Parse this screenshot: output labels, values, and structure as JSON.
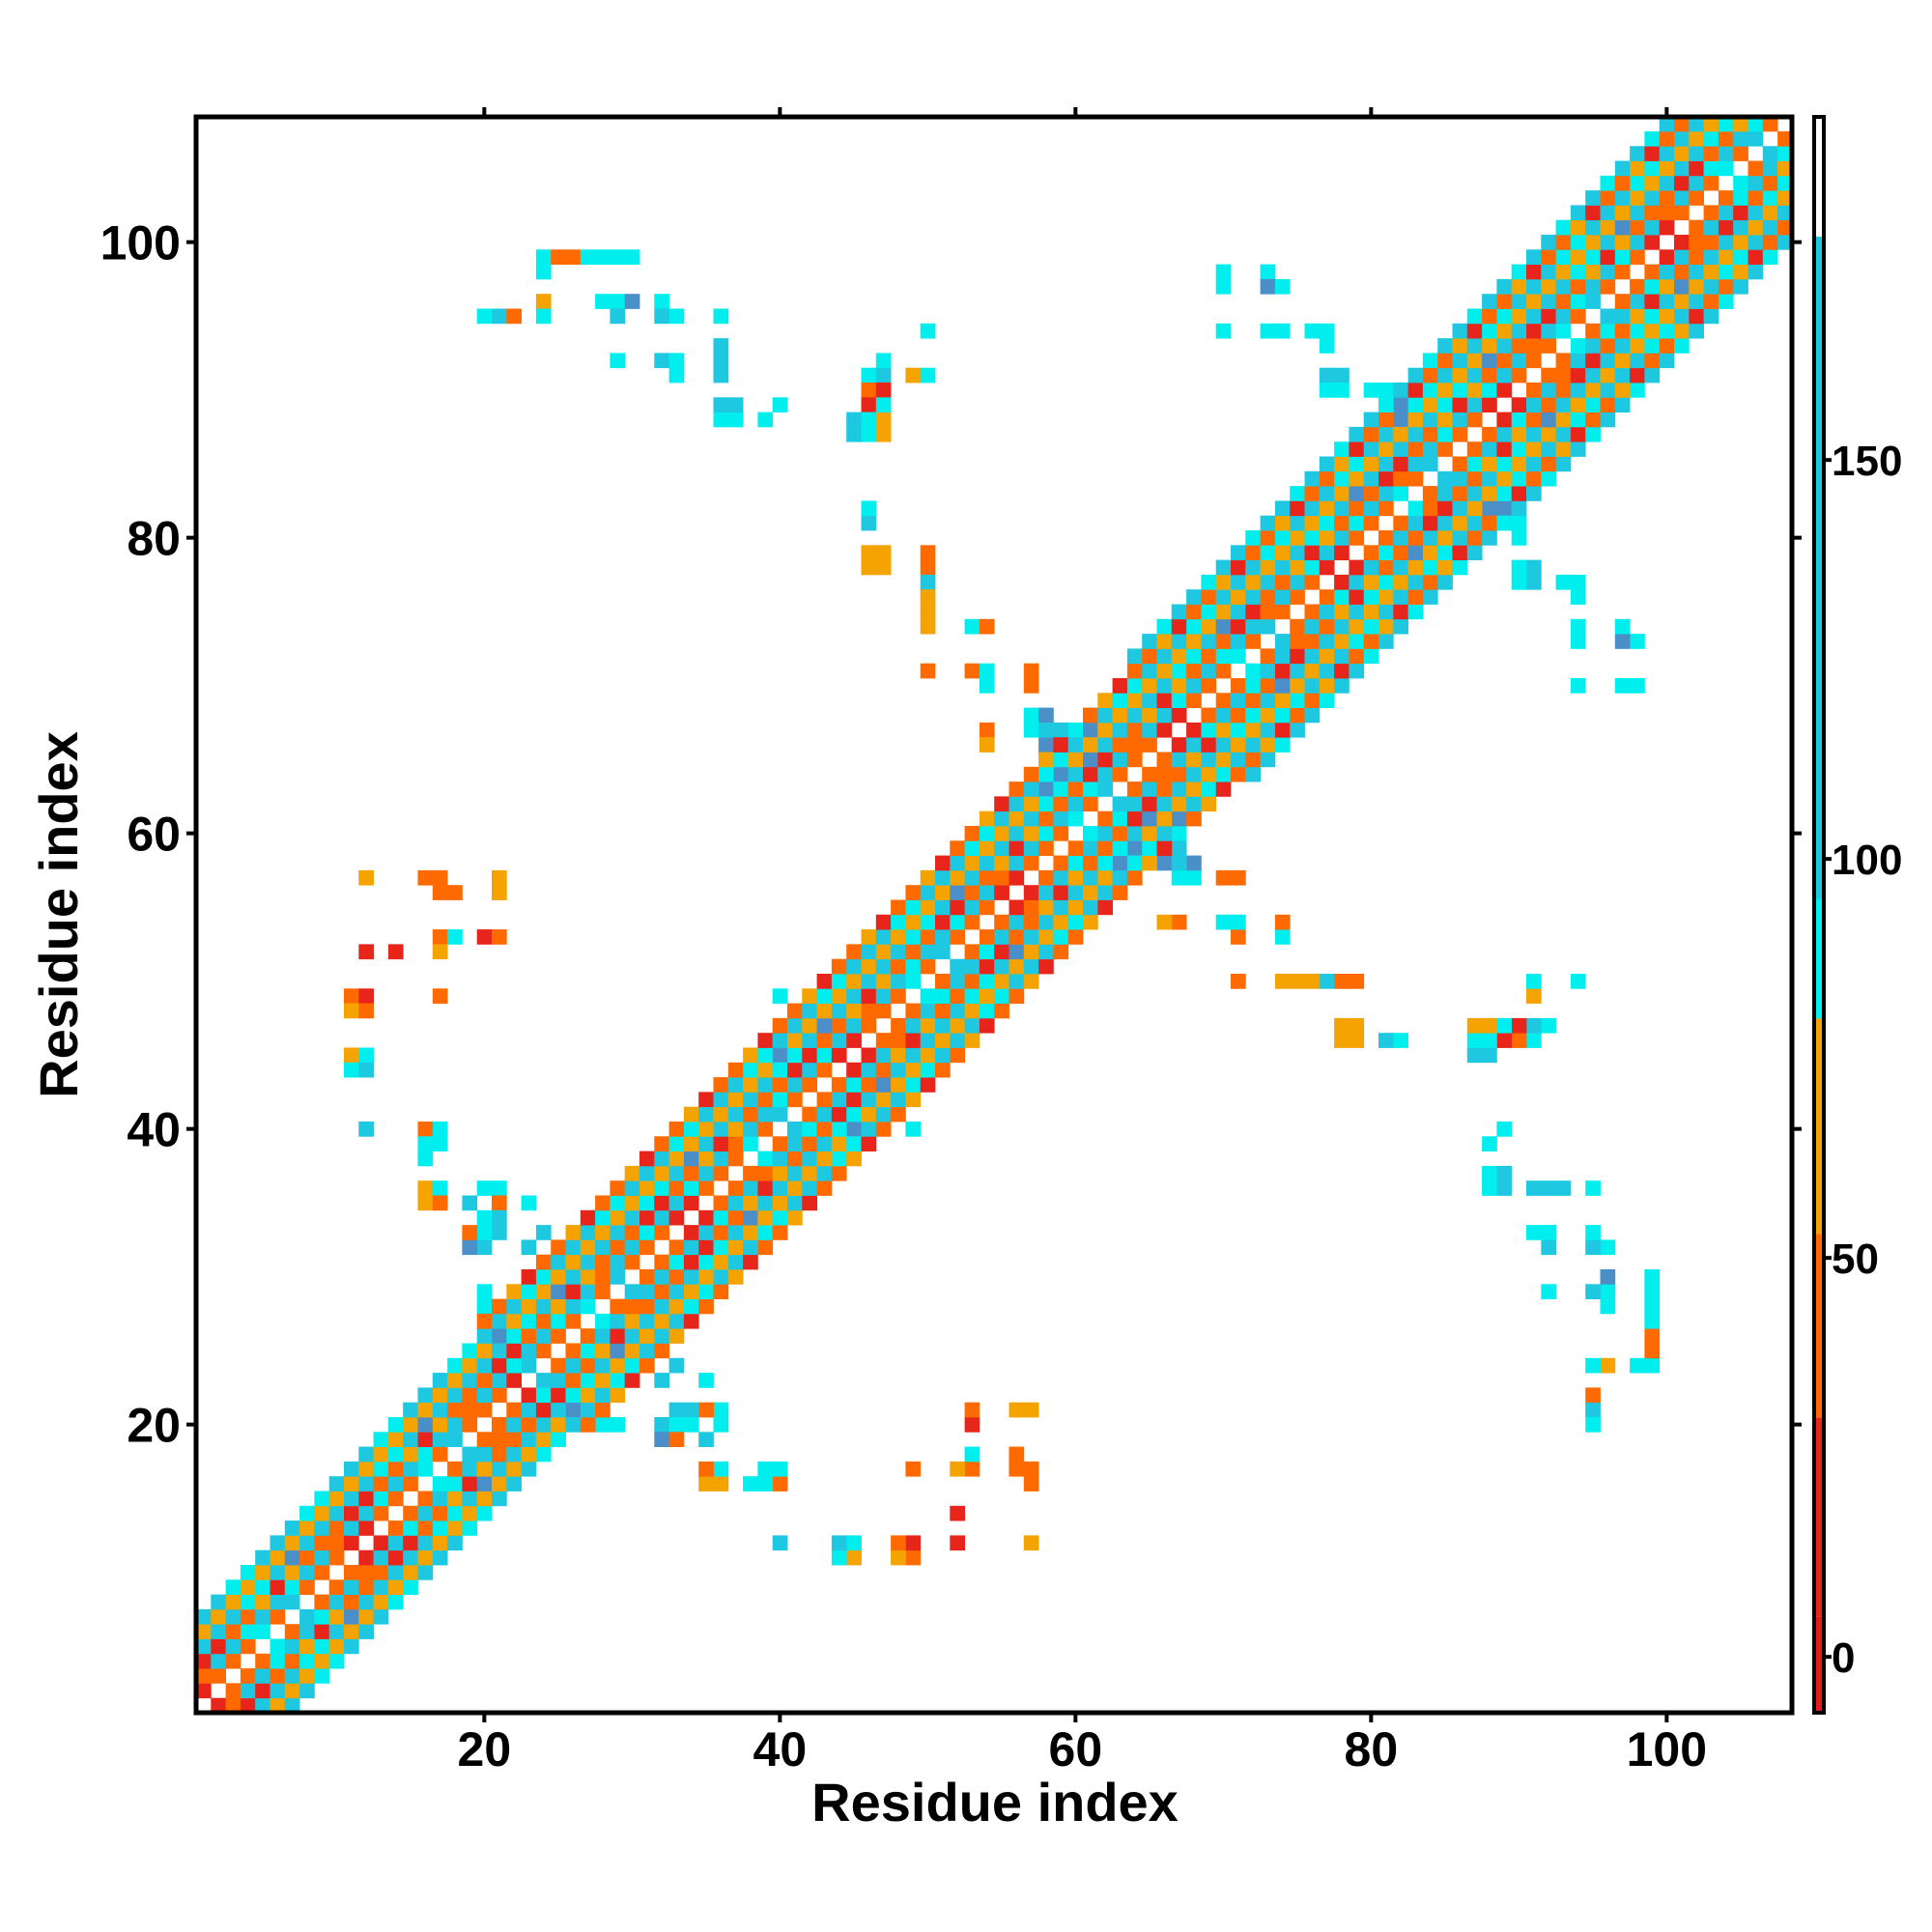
{
  "chart_data": {
    "type": "heatmap",
    "title": "",
    "xlabel": "Residue index",
    "ylabel": "Residue index",
    "xlim": [
      1,
      108
    ],
    "ylim": [
      1,
      108
    ],
    "xticks": [
      20,
      40,
      60,
      80,
      100
    ],
    "yticks": [
      20,
      40,
      60,
      80,
      100
    ],
    "grid": false,
    "colorbar": {
      "ticks": [
        0,
        50,
        100,
        150
      ],
      "range": [
        -7,
        193
      ],
      "bands": [
        {
          "from": -7,
          "to": 5,
          "color": "#e41a1c"
        },
        {
          "from": 5,
          "to": 30,
          "color": "#e8251a"
        },
        {
          "from": 30,
          "to": 53,
          "color": "#ff6a00"
        },
        {
          "from": 53,
          "to": 80,
          "color": "#f5a300"
        },
        {
          "from": 80,
          "to": 95,
          "color": "#00eeee"
        },
        {
          "from": 95,
          "to": 178,
          "color": "#1ec8e0"
        },
        {
          "from": 178,
          "to": 193,
          "color": "#ffffff"
        }
      ]
    },
    "palette": {
      "R": "#e8251a",
      "O": "#ff6a00",
      "Y": "#f5a300",
      "C": "#00eeee",
      "S": "#1ec8e0",
      "B": "#4a8fc8"
    },
    "band_rule": {
      "description": "cells near the diagonal by offset |i-j|",
      "offsets": [
        {
          "d": 1,
          "pattern": "OOOROCOOSOR"
        },
        {
          "d": 2,
          "pattern": "SCSSOSSCS"
        },
        {
          "d": 3,
          "pattern": "ORORYOROYO"
        },
        {
          "d": 4,
          "pattern": "SSCSCSSBS"
        },
        {
          "d": 5,
          "pattern": "OYOOROO"
        },
        {
          "d": 6,
          "pattern": "SCSSC"
        },
        {
          "d": 7,
          "pattern": "OORY"
        },
        {
          "d": 8,
          "pattern": "CSS"
        }
      ],
      "max_offset_by_segment": [
        {
          "from": 1,
          "to": 13,
          "max": 6
        },
        {
          "from": 13,
          "to": 20,
          "max": 6
        },
        {
          "from": 20,
          "to": 28,
          "max": 7
        },
        {
          "from": 28,
          "to": 45,
          "max": 7
        },
        {
          "from": 45,
          "to": 64,
          "max": 7
        },
        {
          "from": 64,
          "to": 87,
          "max": 8
        },
        {
          "from": 87,
          "to": 108,
          "max": 8
        }
      ]
    },
    "off_diagonal_cells": [
      [
        24,
        99,
        "C"
      ],
      [
        25,
        99,
        "O"
      ],
      [
        26,
        99,
        "O"
      ],
      [
        27,
        99,
        "C"
      ],
      [
        28,
        99,
        "C"
      ],
      [
        29,
        99,
        "C"
      ],
      [
        30,
        99,
        "C"
      ],
      [
        24,
        98,
        "C"
      ],
      [
        21,
        95,
        "S"
      ],
      [
        22,
        95,
        "O"
      ],
      [
        24,
        96,
        "Y"
      ],
      [
        24,
        95,
        "C"
      ],
      [
        28,
        96,
        "C"
      ],
      [
        29,
        96,
        "C"
      ],
      [
        30,
        96,
        "B"
      ],
      [
        29,
        95,
        "S"
      ],
      [
        32,
        96,
        "C"
      ],
      [
        32,
        95,
        "S"
      ],
      [
        33,
        95,
        "C"
      ],
      [
        36,
        95,
        "C"
      ],
      [
        29,
        92,
        "C"
      ],
      [
        32,
        92,
        "S"
      ],
      [
        33,
        92,
        "C"
      ],
      [
        33,
        91,
        "C"
      ],
      [
        36,
        92,
        "S"
      ],
      [
        36,
        91,
        "S"
      ],
      [
        36,
        88,
        "C"
      ],
      [
        37,
        88,
        "C"
      ],
      [
        39,
        88,
        "C"
      ],
      [
        46,
        91,
        "C"
      ],
      [
        47,
        91,
        "S"
      ],
      [
        46,
        90,
        "O"
      ],
      [
        47,
        90,
        "R"
      ],
      [
        46,
        89,
        "R"
      ],
      [
        45,
        88,
        "S"
      ],
      [
        46,
        88,
        "C"
      ],
      [
        45,
        87,
        "S"
      ],
      [
        46,
        87,
        "C"
      ],
      [
        47,
        87,
        "Y"
      ],
      [
        49,
        91,
        "Y"
      ],
      [
        50,
        91,
        "C"
      ],
      [
        50,
        94,
        "C"
      ],
      [
        46,
        81,
        "S"
      ],
      [
        46,
        78,
        "Y"
      ],
      [
        47,
        78,
        "Y"
      ],
      [
        50,
        78,
        "O"
      ],
      [
        50,
        77,
        "S"
      ],
      [
        50,
        75,
        "Y"
      ],
      [
        50,
        74,
        "Y"
      ],
      [
        53,
        74,
        "C"
      ],
      [
        54,
        74,
        "O"
      ],
      [
        50,
        71,
        "O"
      ],
      [
        53,
        71,
        "O"
      ],
      [
        54,
        71,
        "C"
      ],
      [
        54,
        70,
        "C"
      ],
      [
        57,
        71,
        "O"
      ],
      [
        57,
        70,
        "O"
      ],
      [
        54,
        67,
        "O"
      ],
      [
        57,
        68,
        "C"
      ],
      [
        58,
        68,
        "B"
      ],
      [
        57,
        67,
        "C"
      ],
      [
        60,
        67,
        "C"
      ],
      [
        61,
        67,
        "B"
      ],
      [
        59,
        64,
        "B"
      ],
      [
        70,
        98,
        "C"
      ],
      [
        70,
        97,
        "C"
      ],
      [
        73,
        98,
        "C"
      ],
      [
        73,
        97,
        "B"
      ],
      [
        74,
        97,
        "C"
      ],
      [
        70,
        94,
        "C"
      ],
      [
        73,
        94,
        "C"
      ],
      [
        74,
        94,
        "C"
      ],
      [
        76,
        94,
        "C"
      ],
      [
        77,
        94,
        "C"
      ],
      [
        77,
        93,
        "C"
      ],
      [
        77,
        91,
        "S"
      ],
      [
        78,
        91,
        "S"
      ],
      [
        77,
        90,
        "C"
      ],
      [
        78,
        90,
        "C"
      ],
      [
        80,
        90,
        "C"
      ],
      [
        81,
        90,
        "C"
      ],
      [
        88,
        82,
        "B"
      ],
      [
        89,
        82,
        "B"
      ],
      [
        90,
        81,
        "C"
      ],
      [
        90,
        80,
        "S"
      ],
      [
        90,
        78,
        "C"
      ],
      [
        91,
        78,
        "B"
      ],
      [
        90,
        77,
        "C"
      ],
      [
        91,
        77,
        "C"
      ],
      [
        93,
        77,
        "C"
      ],
      [
        94,
        77,
        "C"
      ],
      [
        94,
        76,
        "S"
      ],
      [
        94,
        74,
        "C"
      ],
      [
        94,
        73,
        "C"
      ],
      [
        97,
        74,
        "C"
      ],
      [
        97,
        73,
        "C"
      ],
      [
        98,
        73,
        "C"
      ],
      [
        94,
        70,
        "C"
      ],
      [
        97,
        70,
        "C"
      ],
      [
        98,
        70,
        "C"
      ],
      [
        63,
        58,
        "B"
      ],
      [
        66,
        58,
        "B"
      ],
      [
        67,
        57,
        "C"
      ],
      [
        68,
        57,
        "C"
      ],
      [
        67,
        58,
        "S"
      ],
      [
        67,
        59,
        "S"
      ],
      [
        70,
        57,
        "C"
      ],
      [
        71,
        57,
        "Y"
      ],
      [
        66,
        54,
        "Y"
      ],
      [
        70,
        54,
        "C"
      ],
      [
        71,
        54,
        "C"
      ],
      [
        74,
        54,
        "O"
      ],
      [
        74,
        53,
        "C"
      ],
      [
        71,
        53,
        "Y"
      ],
      [
        71,
        50,
        "O"
      ],
      [
        74,
        50,
        "O"
      ],
      [
        75,
        50,
        "O"
      ],
      [
        76,
        50,
        "Y"
      ],
      [
        78,
        50,
        "C"
      ],
      [
        79,
        50,
        "O"
      ],
      [
        79,
        47,
        "Y"
      ],
      [
        79,
        46,
        "Y"
      ],
      [
        82,
        46,
        "C"
      ],
      [
        88,
        47,
        "Y"
      ],
      [
        89,
        47,
        "C"
      ],
      [
        88,
        46,
        "S"
      ],
      [
        89,
        46,
        "O"
      ],
      [
        90,
        46,
        "R"
      ],
      [
        91,
        46,
        "C"
      ],
      [
        91,
        47,
        "C"
      ],
      [
        90,
        47,
        "R"
      ],
      [
        92,
        47,
        "C"
      ],
      [
        91,
        49,
        "O"
      ],
      [
        91,
        50,
        "C"
      ],
      [
        94,
        50,
        "C"
      ],
      [
        89,
        40,
        "C"
      ],
      [
        89,
        37,
        "S"
      ],
      [
        89,
        36,
        "S"
      ],
      [
        92,
        36,
        "C"
      ],
      [
        93,
        36,
        "S"
      ],
      [
        95,
        36,
        "C"
      ],
      [
        91,
        33,
        "C"
      ],
      [
        92,
        33,
        "C"
      ],
      [
        92,
        32,
        "C"
      ],
      [
        95,
        33,
        "S"
      ],
      [
        95,
        32,
        "C"
      ],
      [
        96,
        32,
        "C"
      ],
      [
        96,
        30,
        "B"
      ],
      [
        92,
        29,
        "C"
      ],
      [
        95,
        29,
        "C"
      ],
      [
        96,
        29,
        "C"
      ],
      [
        96,
        28,
        "C"
      ],
      [
        99,
        29,
        "C"
      ],
      [
        99,
        28,
        "C"
      ],
      [
        99,
        27,
        "O"
      ],
      [
        99,
        26,
        "O"
      ],
      [
        95,
        24,
        "C"
      ],
      [
        96,
        24,
        "O"
      ],
      [
        98,
        24,
        "C"
      ],
      [
        99,
        24,
        "C"
      ],
      [
        95,
        21,
        "O"
      ],
      [
        95,
        20,
        "C"
      ],
      [
        12,
        57,
        "Y"
      ],
      [
        16,
        57,
        "O"
      ],
      [
        17,
        57,
        "O"
      ],
      [
        21,
        57,
        "Y"
      ],
      [
        21,
        56,
        "Y"
      ],
      [
        12,
        52,
        "R"
      ],
      [
        14,
        52,
        "R"
      ],
      [
        17,
        53,
        "O"
      ],
      [
        17,
        52,
        "Y"
      ],
      [
        18,
        53,
        "C"
      ],
      [
        20,
        53,
        "R"
      ],
      [
        21,
        53,
        "O"
      ],
      [
        11,
        49,
        "O"
      ],
      [
        11,
        48,
        "Y"
      ],
      [
        12,
        49,
        "R"
      ],
      [
        12,
        48,
        "O"
      ],
      [
        17,
        49,
        "O"
      ],
      [
        11,
        45,
        "Y"
      ],
      [
        12,
        45,
        "C"
      ],
      [
        11,
        44,
        "C"
      ],
      [
        12,
        44,
        "S"
      ],
      [
        12,
        40,
        "S"
      ],
      [
        16,
        40,
        "O"
      ],
      [
        17,
        40,
        "C"
      ],
      [
        16,
        39,
        "C"
      ],
      [
        16,
        36,
        "Y"
      ],
      [
        16,
        35,
        "Y"
      ],
      [
        17,
        36,
        "C"
      ],
      [
        17,
        35,
        "O"
      ],
      [
        19,
        35,
        "S"
      ],
      [
        21,
        36,
        "C"
      ],
      [
        21,
        35,
        "O"
      ],
      [
        21,
        34,
        "S"
      ],
      [
        21,
        33,
        "S"
      ],
      [
        23,
        35,
        "C"
      ],
      [
        40,
        49,
        "C"
      ],
      [
        45,
        40,
        "B"
      ],
      [
        49,
        40,
        "C"
      ],
      [
        24,
        23,
        "S"
      ],
      [
        26,
        21,
        "B"
      ],
      [
        28,
        20,
        "C"
      ],
      [
        29,
        20,
        "C"
      ],
      [
        32,
        20,
        "S"
      ],
      [
        33,
        20,
        "C"
      ],
      [
        34,
        20,
        "C"
      ],
      [
        36,
        20,
        "C"
      ],
      [
        32,
        19,
        "B"
      ],
      [
        33,
        19,
        "O"
      ],
      [
        35,
        19,
        "S"
      ],
      [
        35,
        23,
        "C"
      ],
      [
        32,
        23,
        "S"
      ],
      [
        33,
        24,
        "S"
      ],
      [
        35,
        17,
        "C"
      ],
      [
        36,
        17,
        "C"
      ],
      [
        35,
        16,
        "Y"
      ],
      [
        36,
        16,
        "Y"
      ],
      [
        38,
        16,
        "C"
      ],
      [
        39,
        16,
        "O"
      ],
      [
        39,
        17,
        "C"
      ],
      [
        40,
        12,
        "S"
      ],
      [
        44,
        12,
        "C"
      ],
      [
        45,
        12,
        "C"
      ],
      [
        44,
        11,
        "C"
      ],
      [
        45,
        11,
        "O"
      ],
      [
        48,
        12,
        "R"
      ],
      [
        48,
        11,
        "Y"
      ],
      [
        49,
        11,
        "Y"
      ],
      [
        49,
        12,
        "Y"
      ],
      [
        49,
        17,
        "O"
      ],
      [
        52,
        17,
        "O"
      ],
      [
        53,
        17,
        "O"
      ],
      [
        53,
        18,
        "C"
      ],
      [
        53,
        20,
        "R"
      ],
      [
        53,
        21,
        "O"
      ],
      [
        52,
        14,
        "R"
      ],
      [
        52,
        12,
        "R"
      ],
      [
        56,
        21,
        "O"
      ],
      [
        57,
        21,
        "O"
      ],
      [
        56,
        18,
        "O"
      ],
      [
        56,
        17,
        "O"
      ]
    ]
  }
}
